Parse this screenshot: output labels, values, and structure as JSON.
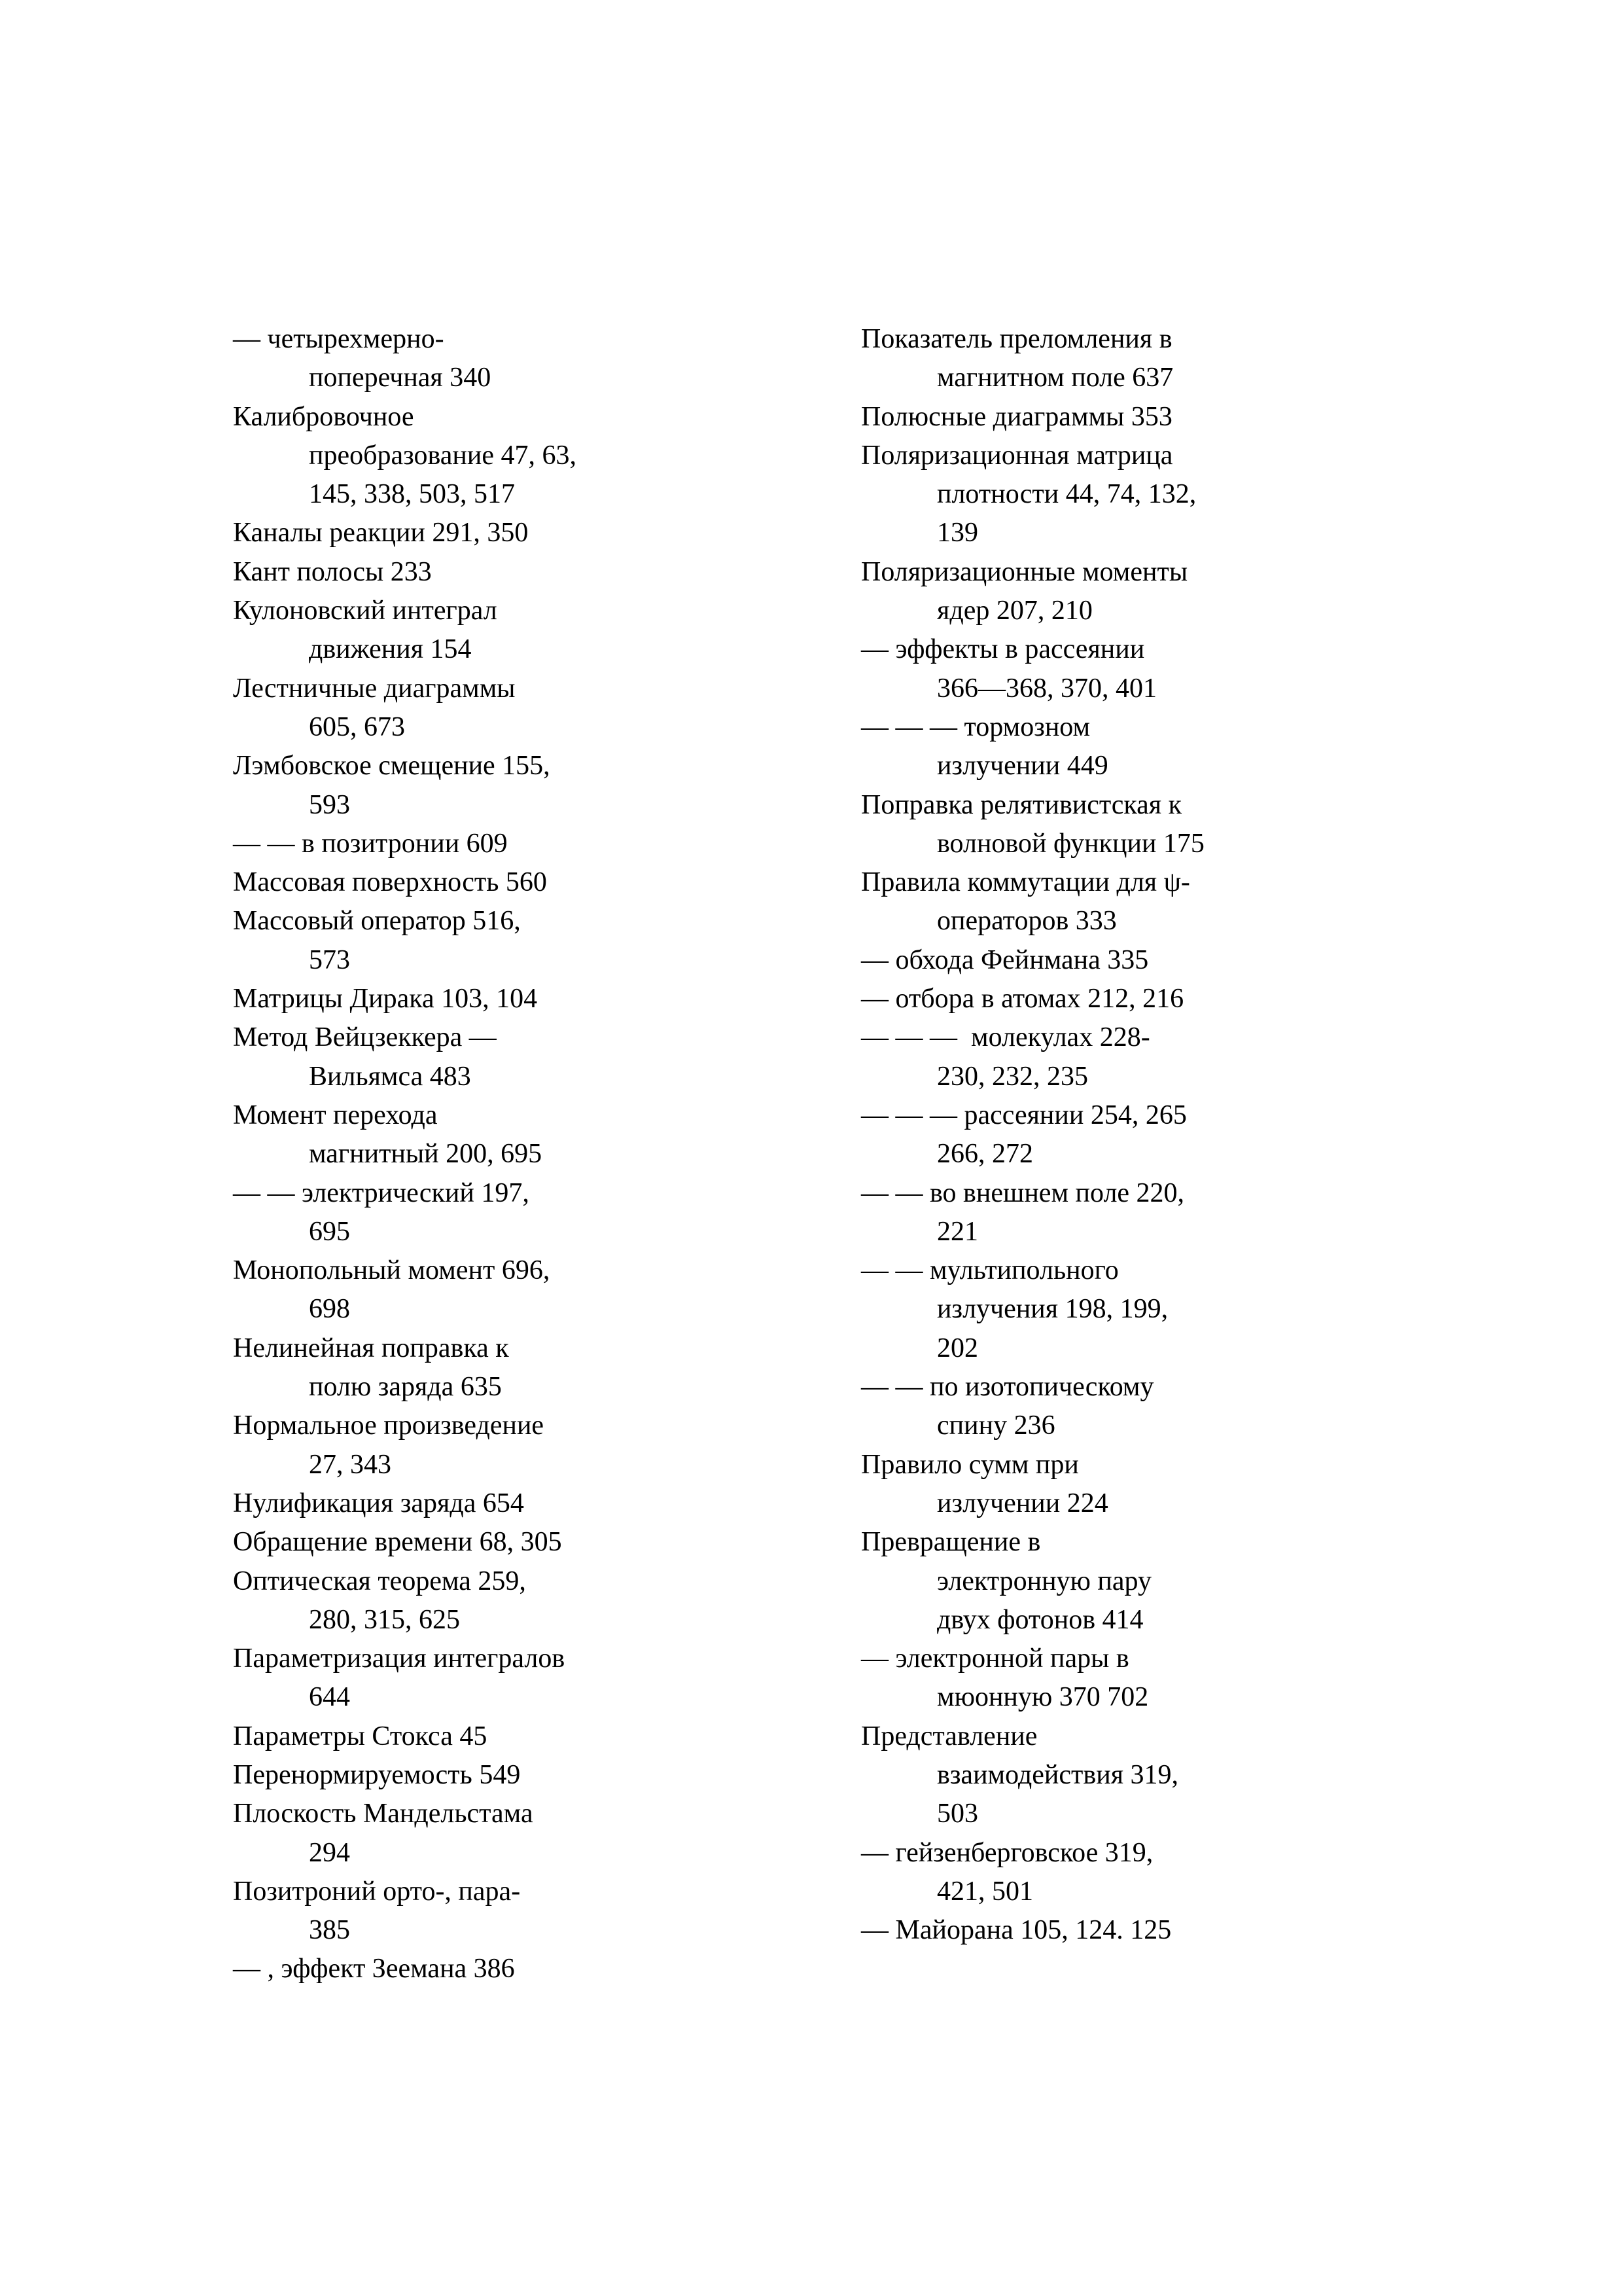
{
  "index": {
    "left_column": [
      [
        "— четырехмерно-",
        "поперечная 340"
      ],
      [
        "Калибровочное",
        "преобразование 47, 63,",
        "145, 338, 503, 517"
      ],
      [
        "Каналы реакции 291, 350"
      ],
      [
        "Кант полосы 233"
      ],
      [
        "Кулоновский интеграл",
        "движения 154"
      ],
      [
        "Лестничные диаграммы",
        "605, 673"
      ],
      [
        "Лэмбовское смещение 155,",
        "593"
      ],
      [
        "— — в позитронии 609"
      ],
      [
        "Массовая поверхность 560"
      ],
      [
        "Массовый оператор 516,",
        "573"
      ],
      [
        "Матрицы Дирака 103, 104"
      ],
      [
        "Метод Вейцзеккера —",
        "Вильямса 483"
      ],
      [
        "Момент перехода",
        "магнитный 200, 695"
      ],
      [
        "— — электрический 197,",
        "695"
      ],
      [
        "Монопольный момент 696,",
        "698"
      ],
      [
        "Нелинейная поправка к",
        "полю заряда 635"
      ],
      [
        "Нормальное произведение",
        "27, 343"
      ],
      [
        "Нулификация заряда 654"
      ],
      [
        "Обращение времени 68, 305"
      ],
      [
        "Оптическая теорема 259,",
        "280, 315, 625"
      ],
      [
        "Параметризация интегралов",
        "644"
      ],
      [
        "Параметры Стокса 45"
      ],
      [
        "Перенормируемость 549"
      ],
      [
        "Плоскость Мандельстама",
        "294"
      ],
      [
        "Позитроний орто-, пара-",
        "385"
      ],
      [
        "— , эффект Зеемана 386"
      ]
    ],
    "right_column": [
      [
        "Показатель преломления в",
        "магнитном поле 637"
      ],
      [
        "Полюсные диаграммы 353"
      ],
      [
        "Поляризационная матрица",
        "плотности 44, 74, 132,",
        "139"
      ],
      [
        "Поляризационные моменты",
        "ядер 207, 210"
      ],
      [
        "— эффекты в рассеянии",
        "366—368, 370, 401"
      ],
      [
        "— — — тормозном",
        "излучении 449"
      ],
      [
        "Поправка релятивистская к",
        "волновой функции 175"
      ],
      [
        "Правила коммутации для ψ-",
        "операторов 333"
      ],
      [
        "— обхода Фейнмана 335"
      ],
      [
        "— отбора в атомах 212, 216"
      ],
      [
        "— — —  молекулах 228-",
        "230, 232, 235"
      ],
      [
        "— — — рассеянии 254, 265",
        "266, 272"
      ],
      [
        "— — во внешнем поле 220,",
        "221"
      ],
      [
        "— — мультипольного",
        "излучения 198, 199,",
        "202"
      ],
      [
        "— — по изотопическому",
        "спину 236"
      ],
      [
        "Правило сумм при",
        "излучении 224"
      ],
      [
        "Превращение в",
        "электронную пару",
        "двух фотонов 414"
      ],
      [
        "— электронной пары в",
        "мюонную 370 702"
      ],
      [
        "Представление",
        "взаимодействия 319,",
        "503"
      ],
      [
        "— гейзенберговское 319,",
        "421, 501"
      ],
      [
        "— Майорана 105, 124. 125"
      ]
    ]
  }
}
